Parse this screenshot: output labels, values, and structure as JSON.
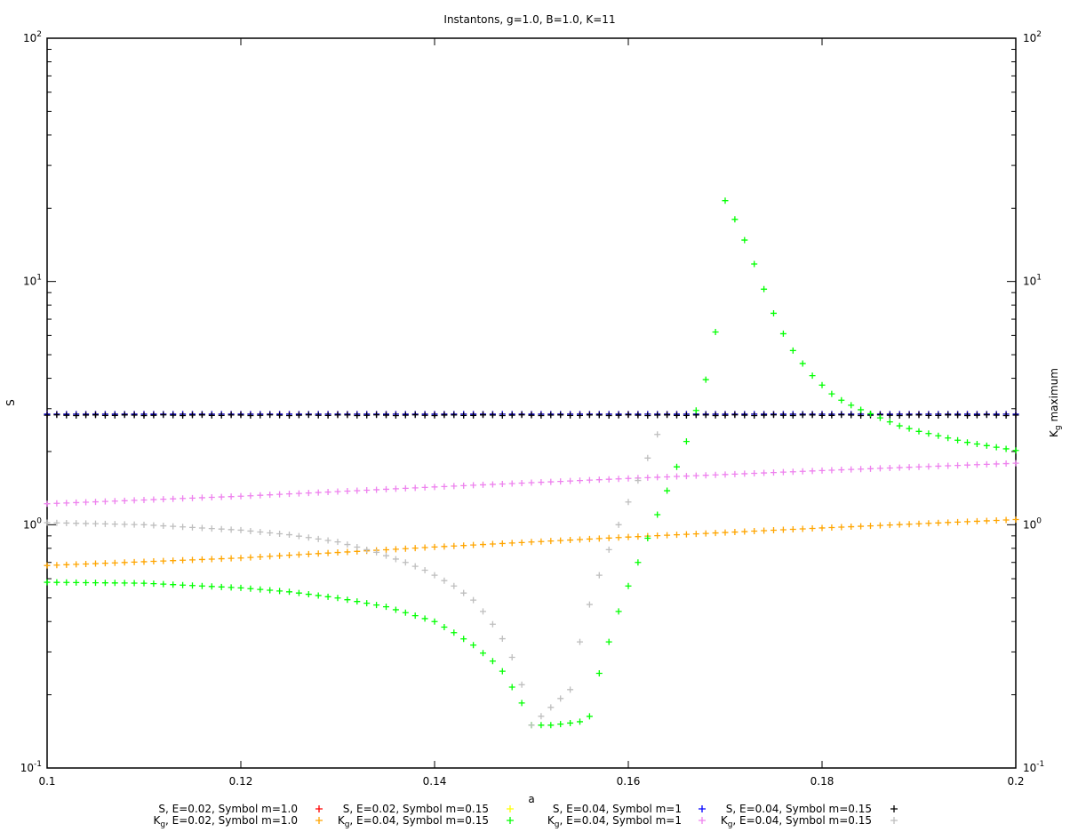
{
  "chart_data": {
    "type": "scatter",
    "title": "Instantons, g=1.0, B=1.0, K=11",
    "xlabel": "a",
    "ylabel_left": "S",
    "ylabel_right_base": "K",
    "ylabel_right_sub": "g",
    "ylabel_right_rest": " maximum",
    "xlim": [
      0.1,
      0.2
    ],
    "ylim": [
      0.1,
      100
    ],
    "yscale": "log",
    "grid": false,
    "legend_position": "bottom",
    "x_ticks": [
      "0.1",
      "0.12",
      "0.14",
      "0.16",
      "0.18",
      "0.2"
    ],
    "y_ticks": [
      {
        "base": "10",
        "exp": "-1",
        "value": 0.1
      },
      {
        "base": "10",
        "exp": "0",
        "value": 1
      },
      {
        "base": "10",
        "exp": "1",
        "value": 10
      },
      {
        "base": "10",
        "exp": "2",
        "value": 100
      }
    ],
    "series": [
      {
        "name": "S, E=0.02, Symbol m=1.0",
        "color": "#ff0000",
        "kind": "S",
        "formula": "const",
        "params": [
          2.85,
          0
        ],
        "x_range": [
          0.1,
          0.2
        ]
      },
      {
        "name": "S, E=0.02, Symbol m=0.15",
        "color": "#ffff00",
        "kind": "S",
        "formula": "const",
        "params": [
          2.85,
          0
        ],
        "x_range": [
          0.1,
          0.2
        ]
      },
      {
        "name": "S, E=0.04, Symbol m=1",
        "color": "#0000ff",
        "kind": "S",
        "formula": "const",
        "params": [
          2.85,
          0
        ],
        "x_range": [
          0.1,
          0.2
        ]
      },
      {
        "name": "S, E=0.04, Symbol m=0.15",
        "color": "#000000",
        "kind": "S",
        "formula": "const",
        "params": [
          2.82,
          0.003
        ],
        "x_range": [
          0.1,
          0.2
        ]
      },
      {
        "name_base": "K",
        "name_sub": "g",
        "name_rest": ", E=0.02, Symbol m=1.0",
        "color": "#ffa500",
        "kind": "K",
        "formula": "linear",
        "points": [
          [
            0.1,
            0.68
          ],
          [
            0.12,
            0.73
          ],
          [
            0.14,
            0.81
          ],
          [
            0.16,
            0.89
          ],
          [
            0.18,
            0.97
          ],
          [
            0.2,
            1.05
          ]
        ]
      },
      {
        "name_base": "K",
        "name_sub": "g",
        "name_rest": ", E=0.04, Symbol m=0.15",
        "color": "#00ff00",
        "kind": "K",
        "formula": "curve",
        "points": [
          [
            0.1,
            0.58
          ],
          [
            0.11,
            0.575
          ],
          [
            0.12,
            0.55
          ],
          [
            0.125,
            0.53
          ],
          [
            0.13,
            0.5
          ],
          [
            0.135,
            0.46
          ],
          [
            0.14,
            0.4
          ],
          [
            0.142,
            0.36
          ],
          [
            0.144,
            0.32
          ],
          [
            0.146,
            0.275
          ],
          [
            0.147,
            0.25
          ],
          [
            0.148,
            0.215
          ],
          [
            0.149,
            0.185
          ],
          [
            0.15,
            0.15
          ],
          [
            0.152,
            0.15
          ],
          [
            0.154,
            0.153
          ],
          [
            0.155,
            0.155
          ],
          [
            0.156,
            0.163
          ],
          [
            0.157,
            0.245
          ],
          [
            0.158,
            0.33
          ],
          [
            0.159,
            0.44
          ],
          [
            0.16,
            0.56
          ],
          [
            0.161,
            0.7
          ],
          [
            0.162,
            0.88
          ],
          [
            0.163,
            1.1
          ],
          [
            0.164,
            1.38
          ],
          [
            0.165,
            1.73
          ],
          [
            0.166,
            2.2
          ],
          [
            0.167,
            2.95
          ],
          [
            0.168,
            3.95
          ],
          [
            0.169,
            6.2
          ],
          [
            0.17,
            21.5
          ],
          [
            0.171,
            18.0
          ],
          [
            0.172,
            14.8
          ],
          [
            0.173,
            11.8
          ],
          [
            0.174,
            9.3
          ],
          [
            0.175,
            7.4
          ],
          [
            0.176,
            6.1
          ],
          [
            0.177,
            5.2
          ],
          [
            0.178,
            4.6
          ],
          [
            0.179,
            4.1
          ],
          [
            0.18,
            3.75
          ],
          [
            0.181,
            3.45
          ],
          [
            0.182,
            3.25
          ],
          [
            0.183,
            3.1
          ],
          [
            0.184,
            2.97
          ],
          [
            0.186,
            2.75
          ],
          [
            0.188,
            2.55
          ],
          [
            0.19,
            2.42
          ],
          [
            0.195,
            2.18
          ],
          [
            0.2,
            2.02
          ]
        ]
      },
      {
        "name_base": "K",
        "name_sub": "g",
        "name_rest": ", E=0.04, Symbol m=1",
        "color": "#ee82ee",
        "kind": "K",
        "formula": "linear",
        "points": [
          [
            0.1,
            1.22
          ],
          [
            0.12,
            1.31
          ],
          [
            0.14,
            1.43
          ],
          [
            0.16,
            1.55
          ],
          [
            0.18,
            1.67
          ],
          [
            0.2,
            1.79
          ]
        ]
      },
      {
        "name_base": "K",
        "name_sub": "g",
        "name_rest": ", E=0.04, Symbol m=0.15",
        "color": "#bebebe",
        "kind": "K",
        "formula": "curve",
        "points": [
          [
            0.1,
            1.02
          ],
          [
            0.11,
            1.0
          ],
          [
            0.12,
            0.95
          ],
          [
            0.125,
            0.91
          ],
          [
            0.13,
            0.85
          ],
          [
            0.134,
            0.77
          ],
          [
            0.137,
            0.7
          ],
          [
            0.139,
            0.65
          ],
          [
            0.14,
            0.62
          ],
          [
            0.142,
            0.56
          ],
          [
            0.144,
            0.49
          ],
          [
            0.145,
            0.44
          ],
          [
            0.146,
            0.39
          ],
          [
            0.147,
            0.34
          ],
          [
            0.148,
            0.285
          ],
          [
            0.149,
            0.22
          ],
          [
            0.15,
            0.15
          ],
          [
            0.154,
            0.21
          ],
          [
            0.155,
            0.33
          ],
          [
            0.156,
            0.47
          ],
          [
            0.157,
            0.62
          ],
          [
            0.158,
            0.79
          ],
          [
            0.159,
            1.0
          ],
          [
            0.16,
            1.24
          ],
          [
            0.161,
            1.52
          ],
          [
            0.162,
            1.88
          ],
          [
            0.163,
            2.35
          ]
        ]
      }
    ]
  }
}
